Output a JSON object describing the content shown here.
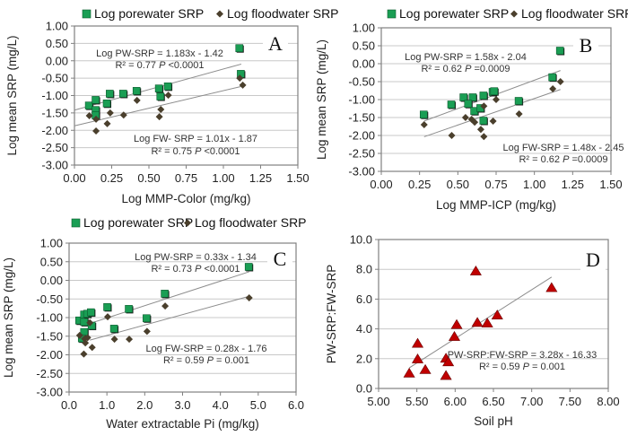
{
  "colors": {
    "porewater": "#1a9e54",
    "floodwater": "#4a3f2c",
    "ratio": "#c00000",
    "grid": "#c8c8c8",
    "trend": "#8c8c8c",
    "frame": "#808080"
  },
  "chart_data": [
    {
      "id": "A",
      "type": "scatter",
      "panel_label": "A",
      "xlabel": "Log MMP-Color (mg/kg)",
      "ylabel": "Log mean SRP (mg/L)",
      "xlim": [
        0,
        1.5
      ],
      "ylim": [
        -3,
        1
      ],
      "xticks": [
        "0.00",
        "0.25",
        "0.50",
        "0.75",
        "1.00",
        "1.25",
        "1.50"
      ],
      "yticks": [
        "1.00",
        "0.50",
        "0.00",
        "-0.50",
        "-1.00",
        "-1.50",
        "-2.00",
        "-2.50",
        "-3.00"
      ],
      "grid": true,
      "legend": [
        "Log porewater SRP",
        "Log floodwater SRP"
      ],
      "legend_position": "top",
      "series": [
        {
          "name": "Log porewater SRP",
          "marker": "square",
          "x": [
            0.1,
            0.145,
            0.145,
            0.145,
            0.22,
            0.24,
            0.33,
            0.42,
            0.57,
            0.58,
            0.63,
            1.11,
            1.12
          ],
          "y": [
            -1.3,
            -1.14,
            -1.43,
            -1.58,
            -1.24,
            -0.96,
            -0.96,
            -0.88,
            -0.81,
            -1.04,
            -0.75,
            0.35,
            -0.39
          ],
          "trend": {
            "slope": 1.183,
            "intercept": -1.42,
            "x_range": [
              0.0,
              1.12
            ]
          },
          "equation": "Log PW-SRP = 1.183x - 1.42",
          "stats_prefix": "R² = 0.77 ",
          "stats_p": "P",
          "stats_suffix": " <0.0001"
        },
        {
          "name": "Log floodwater SRP",
          "marker": "diamond",
          "x": [
            0.1,
            0.145,
            0.145,
            0.22,
            0.24,
            0.33,
            0.42,
            0.57,
            0.58,
            0.63,
            1.11,
            1.13
          ],
          "y": [
            -1.58,
            -1.68,
            -2.02,
            -1.81,
            -1.5,
            -1.56,
            -1.14,
            -1.61,
            -1.4,
            -0.99,
            -0.5,
            -0.7
          ],
          "trend": {
            "slope": 1.01,
            "intercept": -1.87,
            "x_range": [
              0.0,
              1.12
            ]
          },
          "equation": "Log FW- SRP = 1.01x - 1.87",
          "stats_prefix": "R² = 0.75 ",
          "stats_p": "P",
          "stats_suffix": " <0.0001"
        }
      ]
    },
    {
      "id": "B",
      "type": "scatter",
      "panel_label": "B",
      "xlabel": "Log MMP-ICP (mg/kg)",
      "ylabel": "Log mean SRP (mg/L)",
      "xlim": [
        0,
        1.5
      ],
      "ylim": [
        -3,
        1
      ],
      "xticks": [
        "0.00",
        "0.25",
        "0.50",
        "0.75",
        "1.00",
        "1.25",
        "1.50"
      ],
      "yticks": [
        "1.00",
        "0.50",
        "0.00",
        "-0.50",
        "-1.00",
        "-1.50",
        "-2.00",
        "-2.50",
        "-3.00"
      ],
      "grid": true,
      "legend": [
        "Log porewater SRP",
        "Log floodwater SRP"
      ],
      "legend_position": "top",
      "series": [
        {
          "name": "Log porewater SRP",
          "marker": "square",
          "x": [
            0.28,
            0.46,
            0.54,
            0.6,
            0.57,
            0.61,
            0.67,
            0.65,
            0.67,
            0.73,
            0.74,
            0.9,
            1.12,
            1.17
          ],
          "y": [
            -1.43,
            -1.15,
            -0.95,
            -0.95,
            -1.13,
            -1.33,
            -0.9,
            -1.25,
            -1.6,
            -0.8,
            -0.78,
            -1.05,
            -0.39,
            0.35
          ],
          "trend": {
            "slope": 1.58,
            "intercept": -2.04,
            "x_range": [
              0.28,
              1.17
            ]
          },
          "equation": "Log PW-SRP = 1.58x - 2.04",
          "stats_prefix": "R² = 0.62 ",
          "stats_p": "P",
          "stats_suffix": " =0.0009"
        },
        {
          "name": "Log floodwater SRP",
          "marker": "diamond",
          "x": [
            0.28,
            0.46,
            0.55,
            0.59,
            0.61,
            0.65,
            0.67,
            0.67,
            0.73,
            0.75,
            0.9,
            1.12,
            1.17
          ],
          "y": [
            -1.7,
            -2.0,
            -1.5,
            -1.55,
            -1.63,
            -1.83,
            -2.03,
            -1.18,
            -1.6,
            -1.0,
            -1.4,
            -0.7,
            -0.5
          ],
          "trend": {
            "slope": 1.48,
            "intercept": -2.45,
            "x_range": [
              0.28,
              1.17
            ]
          },
          "equation": "Log FW-SRP = 1.48x - 2.45",
          "stats_prefix": "R² = 0.62 ",
          "stats_p": "P",
          "stats_suffix": " =0.0009"
        }
      ]
    },
    {
      "id": "C",
      "type": "scatter",
      "panel_label": "C",
      "xlabel": "Water extractable Pi (mg/kg)",
      "ylabel": "Log mean SRP (mg/L)",
      "xlim": [
        0,
        6
      ],
      "ylim": [
        -3,
        1
      ],
      "xticks": [
        "0.0",
        "1.0",
        "2.0",
        "3.0",
        "4.0",
        "5.0",
        "6.0"
      ],
      "yticks": [
        "1.00",
        "0.50",
        "0.00",
        "-0.50",
        "-1.00",
        "-1.50",
        "-2.00",
        "-2.50",
        "-3.00"
      ],
      "grid": true,
      "legend": [
        "Log porewater SRP",
        "Log floodwater SRP"
      ],
      "legend_position": "top",
      "series": [
        {
          "name": "Log porewater SRP",
          "marker": "square",
          "x": [
            0.28,
            0.41,
            0.41,
            0.49,
            0.59,
            0.61,
            0.41,
            0.35,
            1.02,
            1.2,
            1.59,
            2.06,
            2.54,
            4.76
          ],
          "y": [
            -1.09,
            -0.93,
            -1.13,
            -0.91,
            -0.87,
            -1.23,
            -1.4,
            -1.57,
            -0.73,
            -1.31,
            -0.78,
            -1.03,
            -0.37,
            0.35
          ],
          "trend": {
            "slope": 0.33,
            "intercept": -1.34,
            "x_range": [
              0.55,
              4.76
            ]
          },
          "equation": "Log PW-SRP = 0.33x - 1.34",
          "stats_prefix": "R² = 0.73 ",
          "stats_p": "P",
          "stats_suffix": " <0.0001"
        },
        {
          "name": "Log floodwater SRP",
          "marker": "diamond",
          "x": [
            0.28,
            0.41,
            0.49,
            0.43,
            0.39,
            0.61,
            0.55,
            1.02,
            1.2,
            1.59,
            2.06,
            2.54,
            4.76
          ],
          "y": [
            -1.48,
            -1.57,
            -1.54,
            -1.68,
            -1.98,
            -1.8,
            -1.14,
            -0.98,
            -1.58,
            -1.58,
            -1.37,
            -0.69,
            -0.47
          ],
          "trend": {
            "slope": 0.28,
            "intercept": -1.76,
            "x_range": [
              0.55,
              4.76
            ]
          },
          "equation": "Log FW-SRP = 0.28x - 1.76",
          "stats_prefix": "R² = 0.59 ",
          "stats_p": "P",
          "stats_suffix": " = 0.001"
        }
      ]
    },
    {
      "id": "D",
      "type": "scatter",
      "panel_label": "D",
      "xlabel": "Soil pH",
      "ylabel": "PW-SRP:FW-SRP",
      "xlim": [
        5,
        8
      ],
      "ylim": [
        0,
        10
      ],
      "xticks": [
        "5.00",
        "5.50",
        "6.00",
        "6.50",
        "7.00",
        "7.50",
        "8.00"
      ],
      "yticks": [
        "10.0",
        "8.0",
        "6.0",
        "4.0",
        "2.0",
        "0.0"
      ],
      "grid": true,
      "legend": [],
      "series": [
        {
          "name": "PW-SRP:FW-SRP",
          "marker": "triangle",
          "x": [
            5.4,
            5.51,
            5.51,
            5.61,
            5.88,
            5.88,
            5.91,
            5.99,
            6.02,
            6.27,
            6.29,
            6.42,
            6.55,
            7.26
          ],
          "y": [
            1.0,
            3.0,
            1.95,
            1.24,
            0.84,
            2.0,
            1.76,
            3.46,
            4.26,
            7.86,
            4.4,
            4.36,
            4.9,
            6.74
          ],
          "trend": {
            "slope": 3.28,
            "intercept": -16.33,
            "x_range": [
              5.4,
              7.26
            ]
          },
          "equation": "PW-SRP:FW-SRP = 3.28x - 16.33",
          "stats_prefix": "R² = 0.59 ",
          "stats_p": "P",
          "stats_suffix": " = 0.001"
        }
      ]
    }
  ]
}
